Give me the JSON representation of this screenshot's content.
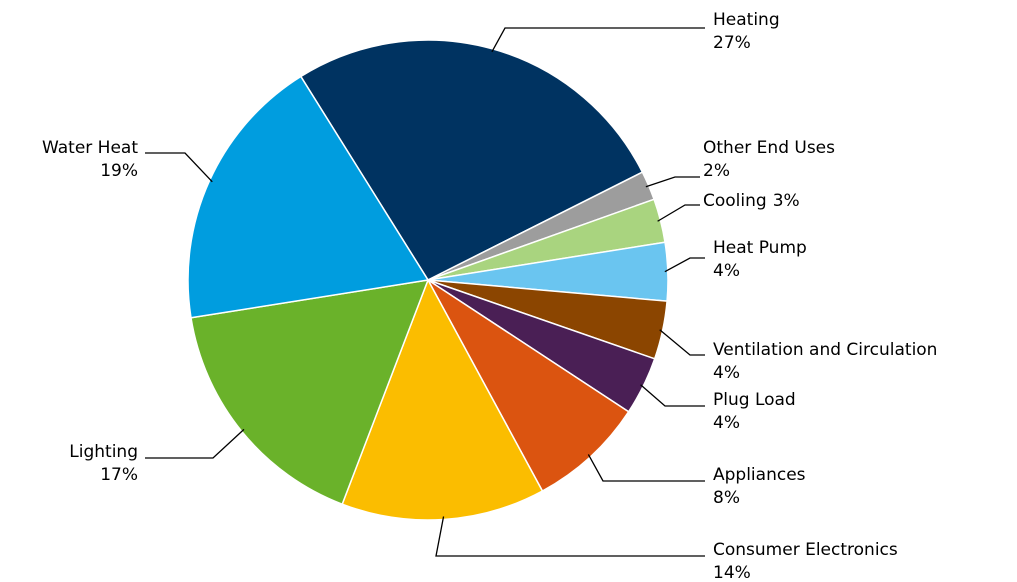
{
  "chart_data": {
    "type": "pie",
    "categories": [
      "Heating",
      "Other End Uses",
      "Cooling",
      "Heat Pump",
      "Ventilation and Circulation",
      "Plug Load",
      "Appliances",
      "Consumer Electronics",
      "Lighting",
      "Water Heat"
    ],
    "values": [
      27,
      2,
      3,
      4,
      4,
      4,
      8,
      14,
      17,
      19
    ],
    "value_labels": [
      "27%",
      "2%",
      "3%",
      "4%",
      "4%",
      "4%",
      "8%",
      "14%",
      "17%",
      "19%"
    ],
    "colors": [
      "#003361",
      "#9d9d9d",
      "#a9d47f",
      "#6ac5f0",
      "#8b4500",
      "#4a1f55",
      "#db5410",
      "#fbbd00",
      "#6ab22a",
      "#009ddf"
    ]
  }
}
